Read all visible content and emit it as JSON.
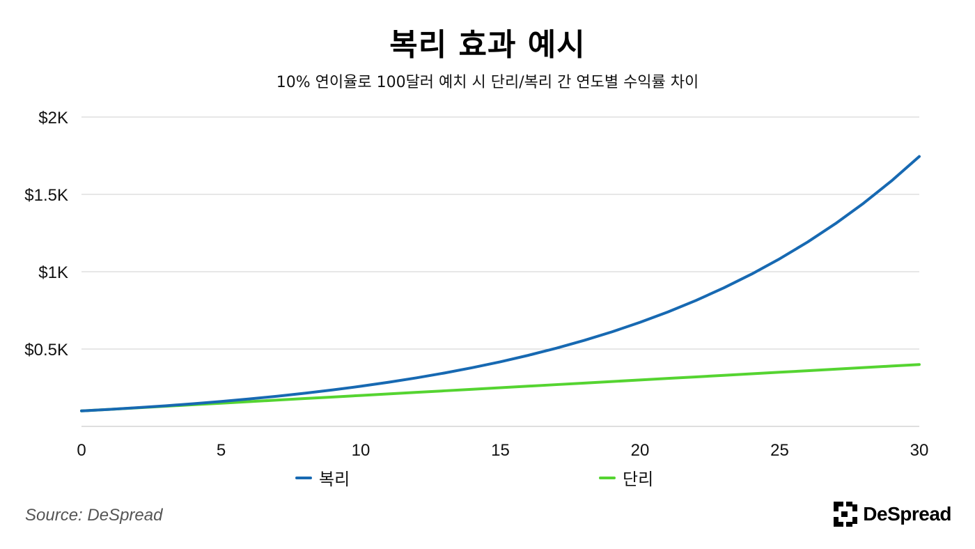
{
  "header": {
    "title": "복리 효과 예시",
    "subtitle": "10% 연이율로 100달러 예치 시 단리/복리 간 연도별 수익률 차이"
  },
  "footer": {
    "source": "Source: DeSpread",
    "brand": "DeSpread"
  },
  "colors": {
    "compound": "#1769b2",
    "simple": "#55d431",
    "grid": "#cfcfcf",
    "axis": "#bdbdbd"
  },
  "chart_data": {
    "type": "line",
    "x": [
      0,
      1,
      2,
      3,
      4,
      5,
      6,
      7,
      8,
      9,
      10,
      11,
      12,
      13,
      14,
      15,
      16,
      17,
      18,
      19,
      20,
      21,
      22,
      23,
      24,
      25,
      26,
      27,
      28,
      29,
      30
    ],
    "series": [
      {
        "name": "복리",
        "color_key": "compound",
        "values": [
          100,
          110,
          121,
          133.1,
          146.41,
          161.05,
          177.16,
          194.87,
          214.36,
          235.79,
          259.37,
          285.31,
          313.84,
          345.23,
          379.75,
          417.72,
          459.5,
          505.45,
          555.99,
          611.59,
          672.75,
          740.02,
          814.03,
          895.43,
          984.97,
          1083.47,
          1191.82,
          1311,
          1442.1,
          1586.31,
          1744.94
        ]
      },
      {
        "name": "단리",
        "color_key": "simple",
        "values": [
          100,
          110,
          120,
          130,
          140,
          150,
          160,
          170,
          180,
          190,
          200,
          210,
          220,
          230,
          240,
          250,
          260,
          270,
          280,
          290,
          300,
          310,
          320,
          330,
          340,
          350,
          360,
          370,
          380,
          390,
          400
        ]
      }
    ],
    "xlim": [
      0,
      30
    ],
    "ylim": [
      0,
      2000
    ],
    "x_ticks": [
      0,
      5,
      10,
      15,
      20,
      25,
      30
    ],
    "x_tick_labels": [
      "0",
      "5",
      "10",
      "15",
      "20",
      "25",
      "30"
    ],
    "y_ticks": [
      500,
      1000,
      1500,
      2000
    ],
    "y_tick_labels": [
      "$0.5K",
      "$1K",
      "$1.5K",
      "$2K"
    ],
    "grid": true,
    "legend_position": "bottom"
  }
}
